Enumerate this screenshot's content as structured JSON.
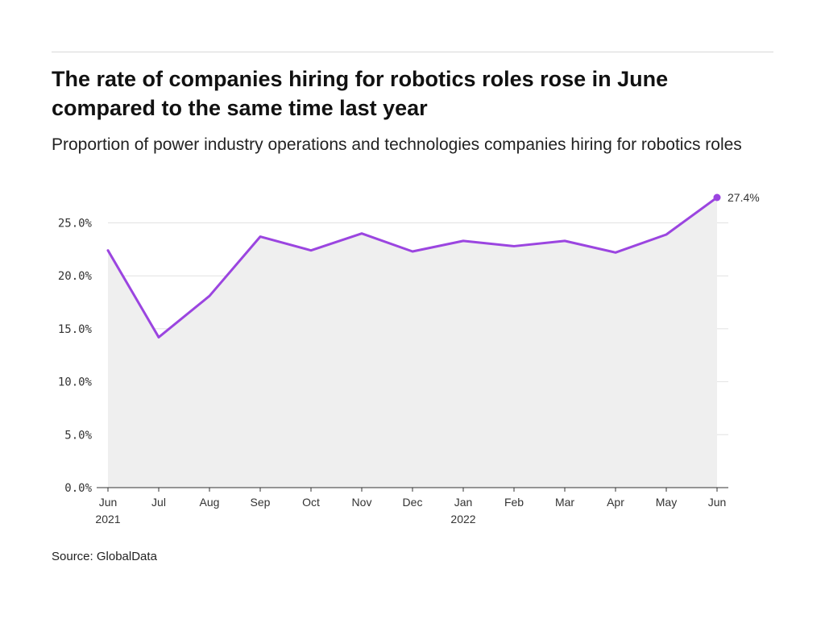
{
  "title": "The rate of companies hiring for robotics roles rose in June compared to the same time last year",
  "subtitle": "Proportion of power industry operations and technologies companies hiring for robotics roles",
  "source": "Source: GlobalData",
  "colors": {
    "line": "#9b45e0",
    "area": "#efefef",
    "grid": "#e2e2e2",
    "axis": "#333333"
  },
  "chart_data": {
    "type": "line",
    "x": [
      "Jun 2021",
      "Jul 2021",
      "Aug 2021",
      "Sep 2021",
      "Oct 2021",
      "Nov 2021",
      "Dec 2021",
      "Jan 2022",
      "Feb 2022",
      "Mar 2022",
      "Apr 2022",
      "May 2022",
      "Jun 2022"
    ],
    "x_tick_labels": [
      {
        "month": "Jun",
        "year": "2021"
      },
      {
        "month": "Jul",
        "year": ""
      },
      {
        "month": "Aug",
        "year": ""
      },
      {
        "month": "Sep",
        "year": ""
      },
      {
        "month": "Oct",
        "year": ""
      },
      {
        "month": "Nov",
        "year": ""
      },
      {
        "month": "Dec",
        "year": ""
      },
      {
        "month": "Jan",
        "year": "2022"
      },
      {
        "month": "Feb",
        "year": ""
      },
      {
        "month": "Mar",
        "year": ""
      },
      {
        "month": "Apr",
        "year": ""
      },
      {
        "month": "May",
        "year": ""
      },
      {
        "month": "Jun",
        "year": ""
      }
    ],
    "values": [
      22.4,
      14.2,
      18.1,
      23.7,
      22.4,
      24.0,
      22.3,
      23.3,
      22.8,
      23.3,
      22.2,
      23.9,
      27.4
    ],
    "ylim": [
      0,
      27.4
    ],
    "y_ticks": [
      0,
      5,
      10,
      15,
      20,
      25
    ],
    "y_tick_labels": [
      "0.0%",
      "5.0%",
      "10.0%",
      "15.0%",
      "20.0%",
      "25.0%"
    ],
    "end_label": "27.4%",
    "grid": true,
    "xlabel": "",
    "ylabel": ""
  }
}
